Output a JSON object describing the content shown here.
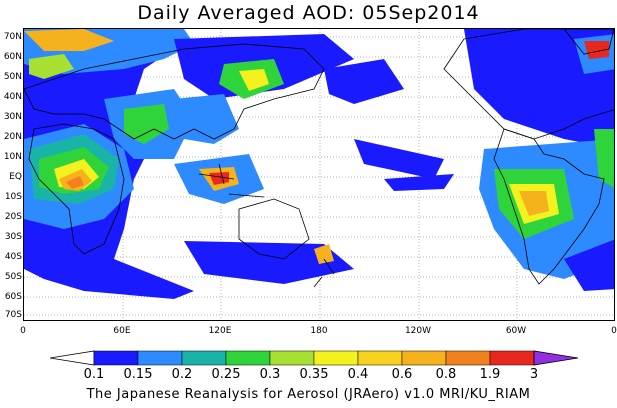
{
  "title": "Daily Averaged AOD: 05Sep2014",
  "footer": "The Japanese Reanalysis for Aerosol (JRAero) v1.0 MRI/KU_RIAM",
  "lat_labels": [
    "70N",
    "60N",
    "50N",
    "40N",
    "30N",
    "20N",
    "10N",
    "EQ",
    "10S",
    "20S",
    "30S",
    "40S",
    "50S",
    "60S",
    "70S"
  ],
  "lon_labels": [
    "0",
    "60E",
    "120E",
    "180",
    "120W",
    "60W",
    "0"
  ],
  "colorbar": {
    "labels": [
      "0.1",
      "0.15",
      "0.2",
      "0.25",
      "0.3",
      "0.35",
      "0.4",
      "0.6",
      "0.8",
      "1.9",
      "3"
    ],
    "colors": [
      "#1a1aff",
      "#2e8bff",
      "#19b3a8",
      "#2fd43a",
      "#a8e032",
      "#f4f21e",
      "#f7d21e",
      "#f6b21c",
      "#f3801e",
      "#e8281e",
      "#9030e0"
    ]
  }
}
